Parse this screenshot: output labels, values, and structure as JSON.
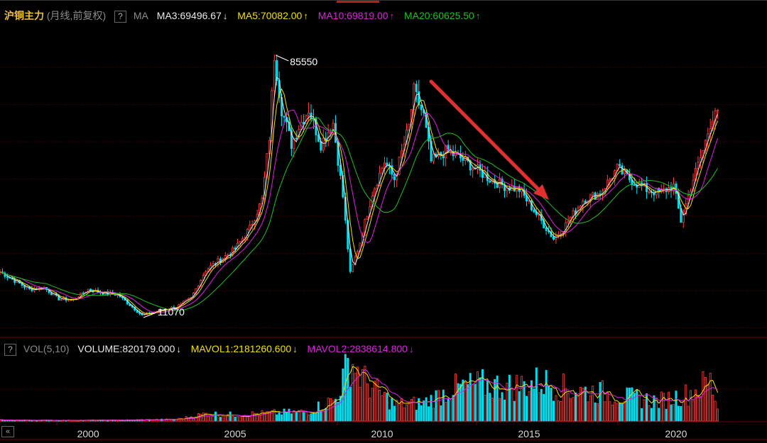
{
  "header": {
    "instrument": "沪铜主力",
    "period": "(月线,前复权)",
    "help": "?",
    "indicator": "MA",
    "ma3": "MA3:69496.67",
    "ma3_arrow": "↓",
    "ma5": "MA5:70082.00",
    "ma5_arrow": "↑",
    "ma10": "MA10:69819.00",
    "ma10_arrow": "↑",
    "ma20": "MA20:60625.50",
    "ma20_arrow": "↑"
  },
  "volume_header": {
    "help": "?",
    "indicator": "VOL(5,10)",
    "volume": "VOLUME:820179.000",
    "volume_arrow": "↓",
    "mavol1": "MAVOL1:2181260.600",
    "mavol1_arrow": "↓",
    "mavol2": "MAVOL2:2838614.800",
    "mavol2_arrow": "↓"
  },
  "nav": {
    "scroll_left": "«"
  },
  "colors": {
    "up": "#ff4040",
    "down": "#00e0f0",
    "ma3": "#e8e8e8",
    "ma5": "#f0e000",
    "ma10": "#e020e0",
    "ma20": "#20c020",
    "grid": "#5a0000",
    "annotation_arrow": "#e03030"
  },
  "chart_data": {
    "type": "candlestick",
    "frequency": "monthly",
    "x_ticks": [
      "2000",
      "2005",
      "2010",
      "2015",
      "2020"
    ],
    "annotations": [
      {
        "label": "85550",
        "kind": "high",
        "date": "2006-05"
      },
      {
        "label": "11070",
        "kind": "low",
        "date": "2001-11"
      }
    ],
    "trend_arrow": {
      "from": "2011-09",
      "to": "2015-12",
      "direction": "down"
    },
    "price_series": [
      [
        "1997-01",
        23500
      ],
      [
        "1997-07",
        21000
      ],
      [
        "1998-01",
        18500
      ],
      [
        "1998-07",
        19000
      ],
      [
        "1999-01",
        15800
      ],
      [
        "1999-07",
        15500
      ],
      [
        "2000-01",
        18500
      ],
      [
        "2000-07",
        17500
      ],
      [
        "2001-01",
        17000
      ],
      [
        "2001-11",
        11070
      ],
      [
        "2002-06",
        12500
      ],
      [
        "2003-01",
        13500
      ],
      [
        "2003-07",
        16000
      ],
      [
        "2004-01",
        24000
      ],
      [
        "2004-07",
        27000
      ],
      [
        "2005-01",
        30000
      ],
      [
        "2005-07",
        36000
      ],
      [
        "2005-12",
        44000
      ],
      [
        "2006-03",
        62000
      ],
      [
        "2006-05",
        85550
      ],
      [
        "2006-08",
        70000
      ],
      [
        "2006-12",
        60000
      ],
      [
        "2007-03",
        65000
      ],
      [
        "2007-07",
        70000
      ],
      [
        "2007-12",
        60000
      ],
      [
        "2008-05",
        66000
      ],
      [
        "2008-09",
        45000
      ],
      [
        "2008-12",
        23000
      ],
      [
        "2009-04",
        32000
      ],
      [
        "2009-09",
        46000
      ],
      [
        "2010-02",
        55000
      ],
      [
        "2010-06",
        50000
      ],
      [
        "2010-12",
        65000
      ],
      [
        "2011-02",
        75000
      ],
      [
        "2011-06",
        68000
      ],
      [
        "2011-09",
        55000
      ],
      [
        "2012-03",
        58000
      ],
      [
        "2012-09",
        56000
      ],
      [
        "2013-03",
        53000
      ],
      [
        "2013-09",
        50000
      ],
      [
        "2014-03",
        48000
      ],
      [
        "2014-09",
        47000
      ],
      [
        "2015-03",
        41000
      ],
      [
        "2015-11",
        33000
      ],
      [
        "2016-03",
        36000
      ],
      [
        "2016-11",
        44000
      ],
      [
        "2017-06",
        46000
      ],
      [
        "2018-01",
        53000
      ],
      [
        "2018-06",
        50000
      ],
      [
        "2019-01",
        47000
      ],
      [
        "2019-06",
        46000
      ],
      [
        "2019-12",
        48000
      ],
      [
        "2020-03",
        38000
      ],
      [
        "2020-08",
        50000
      ],
      [
        "2020-12",
        58000
      ],
      [
        "2021-03",
        66000
      ],
      [
        "2021-05",
        70000
      ],
      [
        "2021-06",
        68000
      ]
    ],
    "volume_series": [
      [
        "1997-01",
        50000
      ],
      [
        "1999-01",
        40000
      ],
      [
        "2001-01",
        45000
      ],
      [
        "2003-01",
        90000
      ],
      [
        "2004-01",
        400000
      ],
      [
        "2005-01",
        350000
      ],
      [
        "2006-05",
        450000
      ],
      [
        "2007-06",
        500000
      ],
      [
        "2008-06",
        1200000
      ],
      [
        "2008-12",
        3400000
      ],
      [
        "2009-06",
        2200000
      ],
      [
        "2010-06",
        900000
      ],
      [
        "2011-06",
        1000000
      ],
      [
        "2012-06",
        1800000
      ],
      [
        "2013-06",
        2000000
      ],
      [
        "2014-06",
        1900000
      ],
      [
        "2015-06",
        2200000
      ],
      [
        "2016-06",
        1700000
      ],
      [
        "2017-06",
        1600000
      ],
      [
        "2018-06",
        1300000
      ],
      [
        "2019-06",
        1100000
      ],
      [
        "2020-06",
        1500000
      ],
      [
        "2021-03",
        2200000
      ],
      [
        "2021-06",
        820179
      ]
    ]
  }
}
